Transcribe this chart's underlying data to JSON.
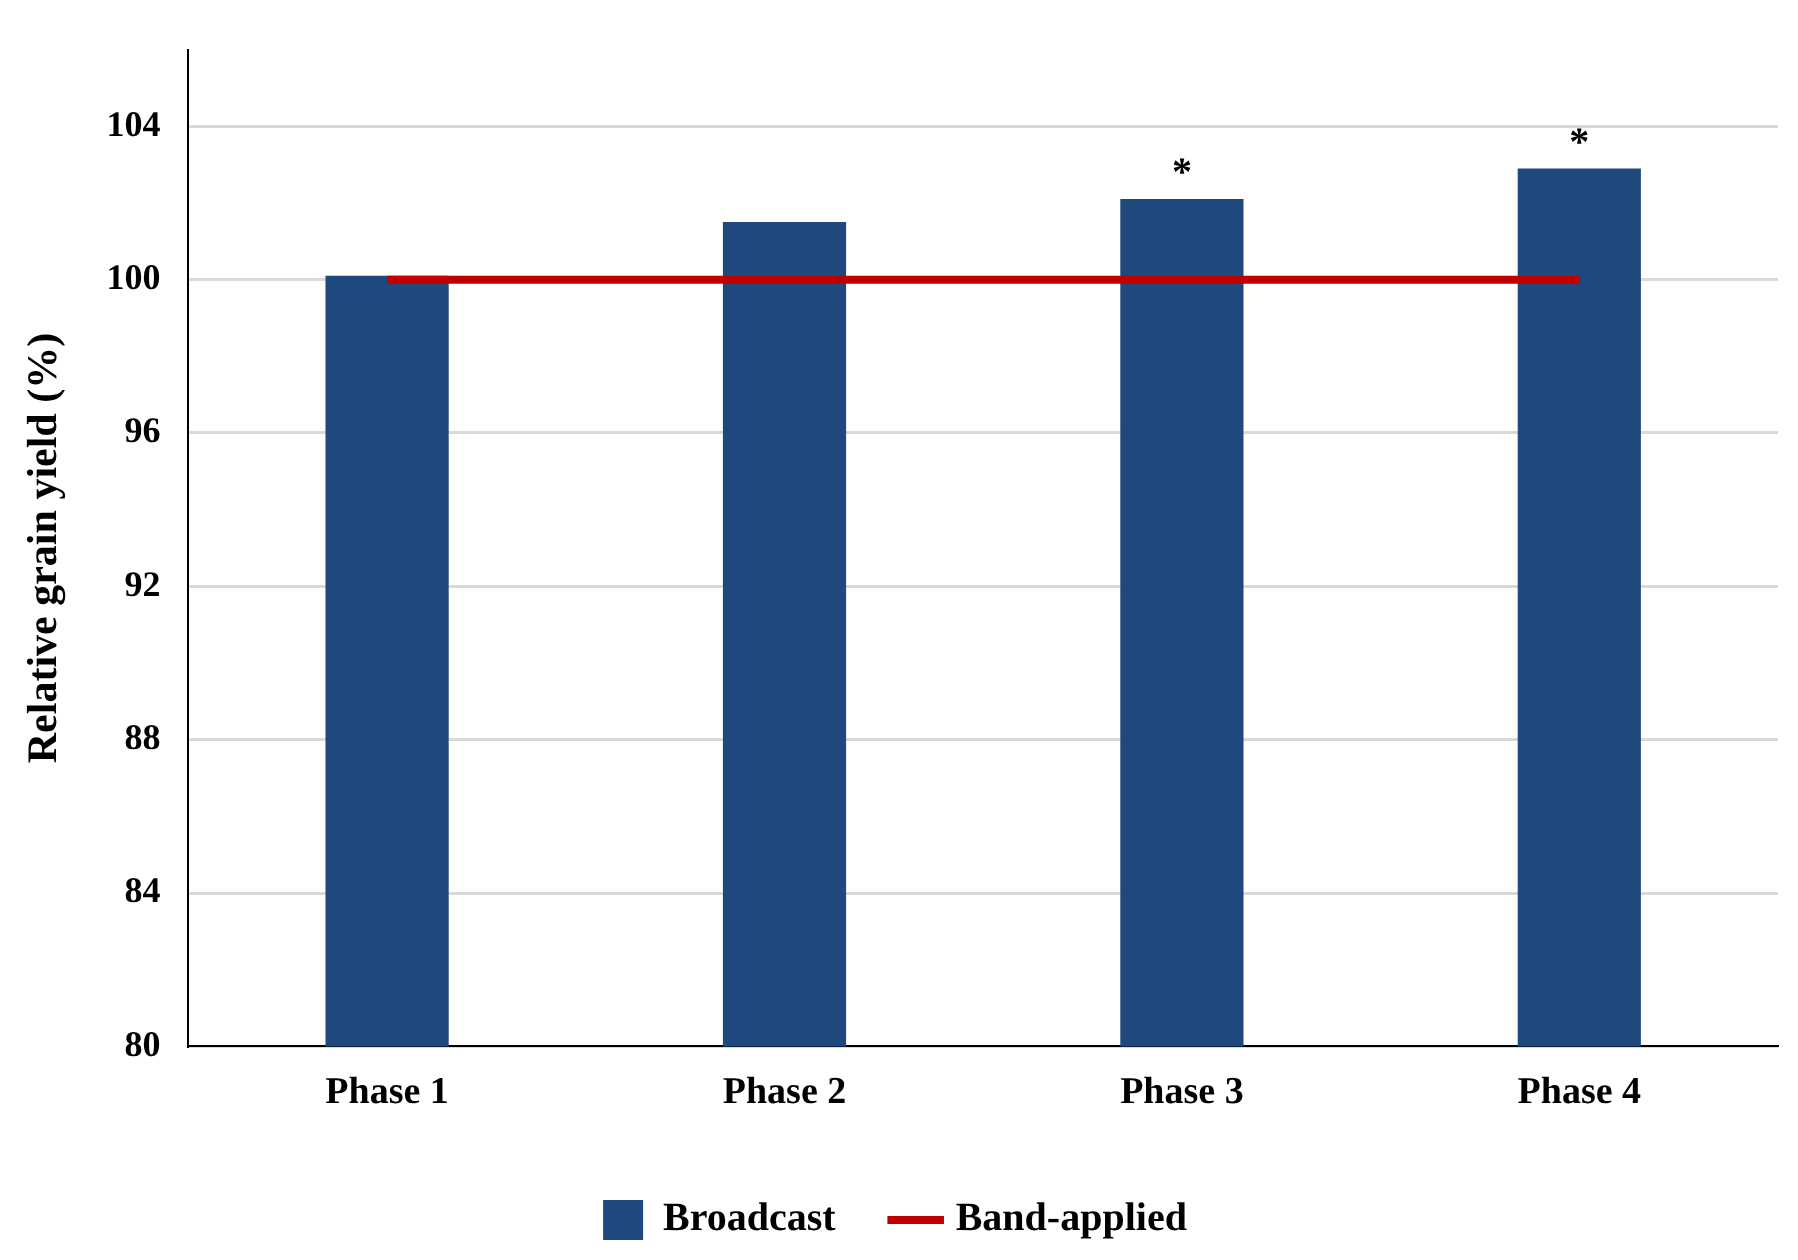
{
  "chart_data": {
    "type": "bar",
    "ylabel": "Relative grain yield (%)",
    "categories": [
      "Phase 1",
      "Phase 2",
      "Phase 3",
      "Phase 4"
    ],
    "series": [
      {
        "name": "Broadcast",
        "color": "#1f497d",
        "values": [
          100.1,
          101.5,
          102.1,
          102.9
        ]
      },
      {
        "name": "Band-applied",
        "type": "line",
        "color": "#c00000",
        "values": [
          100,
          100,
          100,
          100
        ],
        "marker": "none"
      }
    ],
    "ylim": [
      80,
      106
    ],
    "yticks": [
      80,
      84,
      88,
      92,
      96,
      100,
      104
    ],
    "grid": "y",
    "legend": "bottom",
    "annotations": [
      {
        "text": "*",
        "x": "Phase 3",
        "y": 102.1
      },
      {
        "text": "*",
        "x": "Phase 4",
        "y": 102.9
      }
    ]
  }
}
